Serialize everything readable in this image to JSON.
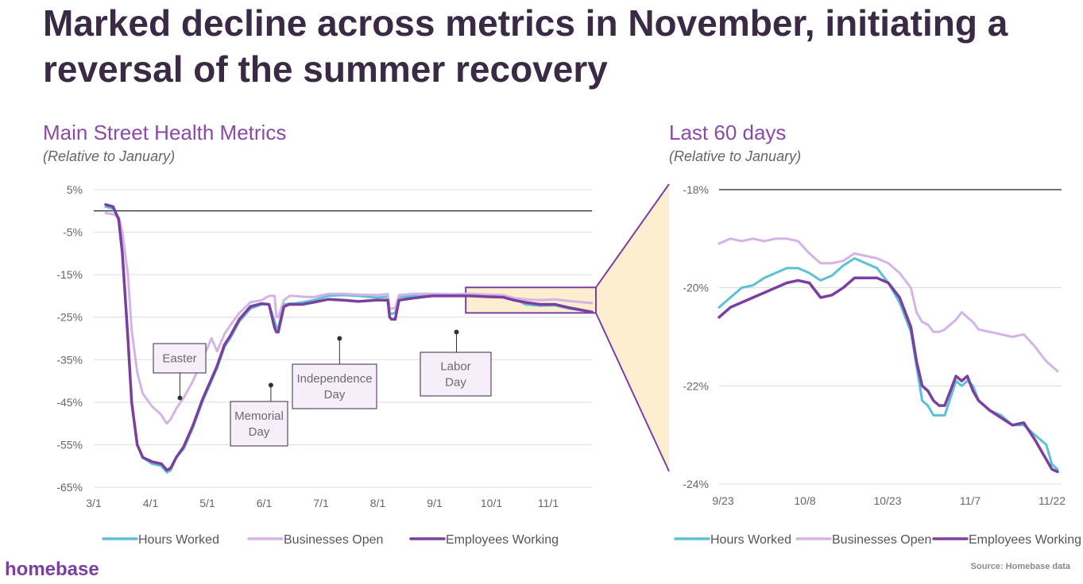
{
  "headline": "Marked decline across metrics in November, initiating a reversal of the summer recovery",
  "colors": {
    "hours_worked": "#5bc2d6",
    "businesses_open": "#d4b4e6",
    "employees_working": "#7b3fa0",
    "title": "#8b4aa8",
    "zoom_fill": "#fdeed0"
  },
  "chart_data": [
    {
      "type": "line",
      "title": "Main Street Health Metrics",
      "subtitle": "(Relative to January)",
      "y_ticks": [
        "5%",
        "-5%",
        "-15%",
        "-25%",
        "-35%",
        "-45%",
        "-55%",
        "-65%"
      ],
      "x_ticks": [
        "3/1",
        "4/1",
        "5/1",
        "6/1",
        "7/1",
        "8/1",
        "9/1",
        "10/1",
        "11/1"
      ],
      "ylim": [
        -65,
        5
      ],
      "x": [
        0,
        4,
        7,
        9,
        12,
        14,
        17,
        20,
        25,
        30,
        32,
        33,
        35,
        38,
        42,
        47,
        52,
        55,
        57,
        60,
        64,
        67,
        72,
        78,
        84,
        88,
        91,
        92,
        93,
        96,
        99,
        101,
        106,
        112,
        120,
        128,
        136,
        146,
        152,
        153,
        154,
        156,
        158,
        166,
        176,
        186,
        196,
        206,
        214,
        220,
        226,
        234,
        242,
        250,
        262
      ],
      "series": [
        {
          "name": "Hours Worked",
          "values": [
            1,
            0.5,
            -2,
            -10,
            -30,
            -45,
            -55,
            -58,
            -59.5,
            -60,
            -61,
            -61.5,
            -61,
            -58,
            -56,
            -51,
            -45,
            -42,
            -40,
            -37,
            -32,
            -30,
            -26,
            -23,
            -22,
            -22,
            -26,
            -27.5,
            -27.5,
            -22,
            -21.8,
            -21.8,
            -21.5,
            -21,
            -20,
            -19.8,
            -20,
            -20.4,
            -20.2,
            -24,
            -24.2,
            -24,
            -20.3,
            -20,
            -19.7,
            -19.9,
            -19.8,
            -19.8,
            -20,
            -20.5,
            -22,
            -22.3,
            -22.2,
            -23,
            -23.7
          ]
        },
        {
          "name": "Businesses Open",
          "values": [
            -0.5,
            -0.8,
            -1.5,
            -5,
            -15,
            -28,
            -38,
            -43,
            -46,
            -48,
            -49.5,
            -50,
            -49,
            -46.5,
            -44,
            -40,
            -35,
            -32,
            -30,
            -33,
            -29,
            -27,
            -24,
            -21.5,
            -21,
            -20,
            -20,
            -25,
            -25,
            -21,
            -20,
            -20,
            -20.2,
            -20.3,
            -19.5,
            -19.5,
            -19.7,
            -19.8,
            -19.6,
            -23,
            -23,
            -22.8,
            -19.8,
            -19.5,
            -19.5,
            -19.6,
            -19.5,
            -19.7,
            -19.8,
            -20.5,
            -20.8,
            -21,
            -20.8,
            -21.2,
            -21.7
          ]
        },
        {
          "name": "Employees Working",
          "values": [
            1.5,
            1,
            -2,
            -10,
            -30,
            -45,
            -55,
            -58,
            -59,
            -59.5,
            -60.5,
            -61,
            -60.5,
            -58,
            -55.5,
            -50.5,
            -44.5,
            -41.5,
            -39.5,
            -36.5,
            -31.5,
            -29.5,
            -25.5,
            -22.5,
            -21.8,
            -22,
            -27.5,
            -28.5,
            -28.5,
            -22.5,
            -22,
            -22,
            -22,
            -21.5,
            -20.8,
            -21,
            -21.3,
            -21,
            -21,
            -25,
            -25.5,
            -25.5,
            -21,
            -20.5,
            -20,
            -20,
            -20,
            -20.2,
            -20.3,
            -21,
            -21.5,
            -22,
            -22,
            -22.8,
            -23.8
          ]
        }
      ],
      "annotations": [
        {
          "label": "Easter",
          "x": 40,
          "y": -44
        },
        {
          "label": "Memorial Day",
          "x": 89,
          "y": -41
        },
        {
          "label": "Independence Day",
          "x": 126,
          "y": -30
        },
        {
          "label": "Labor Day",
          "x": 189,
          "y": -28.5
        }
      ],
      "zoom_range": {
        "x": [
          194,
          262
        ],
        "y": [
          -18,
          -24
        ]
      }
    },
    {
      "type": "line",
      "title": "Last 60 days",
      "subtitle": "(Relative to January)",
      "y_ticks": [
        "-18%",
        "-20%",
        "-22%",
        "-24%"
      ],
      "x_ticks": [
        "9/23",
        "10/8",
        "10/23",
        "11/7",
        "11/22"
      ],
      "ylim": [
        -24,
        -18
      ],
      "x": [
        0,
        2,
        4,
        6,
        8,
        10,
        12,
        14,
        16,
        18,
        20,
        22,
        24,
        26,
        28,
        30,
        32,
        34,
        35,
        36,
        37,
        38,
        39,
        40,
        42,
        43,
        44,
        45,
        46,
        48,
        50,
        52,
        54,
        56,
        58,
        59,
        60
      ],
      "series": [
        {
          "name": "Hours Worked",
          "values": [
            -20.4,
            -20.2,
            -20.0,
            -19.95,
            -19.8,
            -19.7,
            -19.6,
            -19.6,
            -19.7,
            -19.85,
            -19.75,
            -19.55,
            -19.4,
            -19.5,
            -19.6,
            -19.9,
            -20.3,
            -20.9,
            -21.6,
            -22.3,
            -22.4,
            -22.6,
            -22.6,
            -22.6,
            -21.9,
            -22.0,
            -21.9,
            -22.0,
            -22.3,
            -22.5,
            -22.6,
            -22.8,
            -22.8,
            -23.0,
            -23.2,
            -23.6,
            -23.7
          ]
        },
        {
          "name": "Businesses Open",
          "values": [
            -19.1,
            -19.0,
            -19.05,
            -19.0,
            -19.05,
            -19.0,
            -19.0,
            -19.05,
            -19.3,
            -19.5,
            -19.5,
            -19.45,
            -19.3,
            -19.35,
            -19.4,
            -19.5,
            -19.7,
            -20.0,
            -20.5,
            -20.7,
            -20.75,
            -20.9,
            -20.9,
            -20.85,
            -20.65,
            -20.5,
            -20.6,
            -20.7,
            -20.85,
            -20.9,
            -20.95,
            -21.0,
            -20.95,
            -21.2,
            -21.5,
            -21.6,
            -21.7
          ]
        },
        {
          "name": "Employees Working",
          "values": [
            -20.6,
            -20.4,
            -20.3,
            -20.2,
            -20.1,
            -20.0,
            -19.9,
            -19.85,
            -19.9,
            -20.2,
            -20.15,
            -20.0,
            -19.8,
            -19.8,
            -19.8,
            -19.9,
            -20.2,
            -20.8,
            -21.5,
            -22.0,
            -22.1,
            -22.3,
            -22.4,
            -22.4,
            -21.8,
            -21.9,
            -21.8,
            -22.1,
            -22.3,
            -22.5,
            -22.65,
            -22.8,
            -22.75,
            -23.1,
            -23.5,
            -23.7,
            -23.75
          ]
        }
      ]
    }
  ],
  "footer": {
    "logo": "homebase",
    "source": "Source: Homebase data"
  }
}
